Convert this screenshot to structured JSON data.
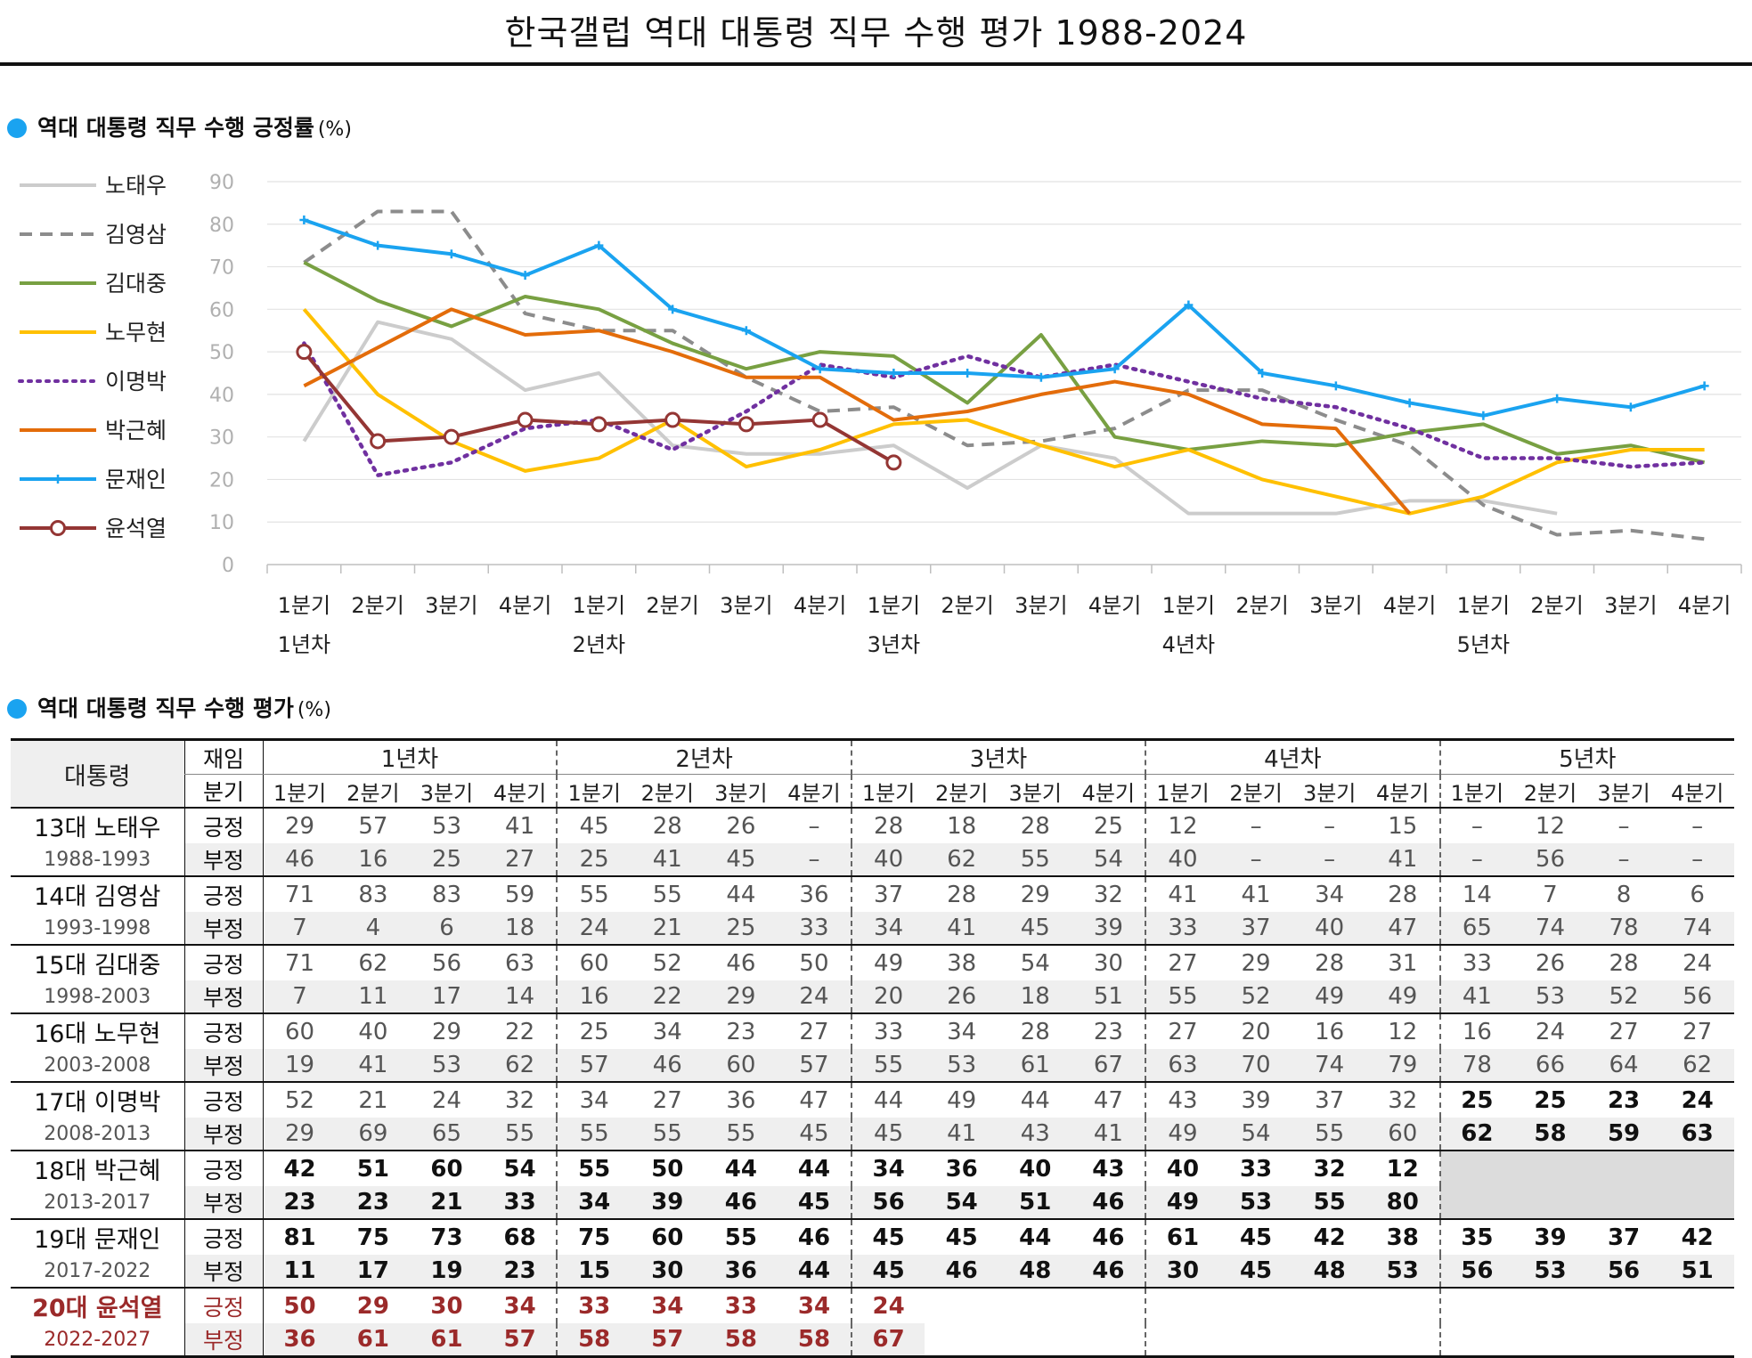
{
  "title": "한국갤럽 역대 대통령 직무 수행 평가 1988-2024",
  "chart_section": {
    "label": "역대 대통령 직무 수행 긍정률",
    "unit": "(%)"
  },
  "table_section": {
    "label": "역대 대통령 직무 수행 평가",
    "unit": "(%)"
  },
  "colors": {
    "accent_dot": "#1aa3f0",
    "current_president": "#9b2a2a"
  },
  "chart_data": {
    "type": "line",
    "title": "역대 대통령 직무 수행 긍정률 (%)",
    "ylim": [
      0,
      90
    ],
    "yticks": [
      0,
      10,
      20,
      30,
      40,
      50,
      60,
      70,
      80,
      90
    ],
    "quarter_labels": [
      "1분기",
      "2분기",
      "3분기",
      "4분기",
      "1분기",
      "2분기",
      "3분기",
      "4분기",
      "1분기",
      "2분기",
      "3분기",
      "4분기",
      "1분기",
      "2분기",
      "3분기",
      "4분기",
      "1분기",
      "2분기",
      "3분기",
      "4분기"
    ],
    "year_labels": [
      "1년차",
      "2년차",
      "3년차",
      "4년차",
      "5년차"
    ],
    "grid": true,
    "legend": "left",
    "series": [
      {
        "name": "노태우",
        "color": "#cccccc",
        "dash": "solid",
        "marker": "none",
        "values": [
          29,
          57,
          53,
          41,
          45,
          28,
          26,
          26,
          28,
          18,
          28,
          25,
          12,
          12,
          12,
          15,
          15,
          12,
          null,
          null
        ]
      },
      {
        "name": "김영삼",
        "color": "#8c8c8c",
        "dash": "dashed",
        "marker": "none",
        "values": [
          71,
          83,
          83,
          59,
          55,
          55,
          44,
          36,
          37,
          28,
          29,
          32,
          41,
          41,
          34,
          28,
          14,
          7,
          8,
          6
        ]
      },
      {
        "name": "김대중",
        "color": "#78a042",
        "dash": "solid",
        "marker": "none",
        "values": [
          71,
          62,
          56,
          63,
          60,
          52,
          46,
          50,
          49,
          38,
          54,
          30,
          27,
          29,
          28,
          31,
          33,
          26,
          28,
          24
        ]
      },
      {
        "name": "노무현",
        "color": "#ffc000",
        "dash": "solid",
        "marker": "none",
        "values": [
          60,
          40,
          29,
          22,
          25,
          34,
          23,
          27,
          33,
          34,
          28,
          23,
          27,
          20,
          16,
          12,
          16,
          24,
          27,
          27
        ]
      },
      {
        "name": "이명박",
        "color": "#7030a0",
        "dash": "dotted",
        "marker": "none",
        "values": [
          52,
          21,
          24,
          32,
          34,
          27,
          36,
          47,
          44,
          49,
          44,
          47,
          43,
          39,
          37,
          32,
          25,
          25,
          23,
          24
        ]
      },
      {
        "name": "박근혜",
        "color": "#e36c0a",
        "dash": "solid",
        "marker": "none",
        "values": [
          42,
          51,
          60,
          54,
          55,
          50,
          44,
          44,
          34,
          36,
          40,
          43,
          40,
          33,
          32,
          12,
          null,
          null,
          null,
          null
        ]
      },
      {
        "name": "문재인",
        "color": "#1aa3f0",
        "dash": "solid",
        "marker": "plus",
        "values": [
          81,
          75,
          73,
          68,
          75,
          60,
          55,
          46,
          45,
          45,
          44,
          46,
          61,
          45,
          42,
          38,
          35,
          39,
          37,
          42
        ]
      },
      {
        "name": "윤석열",
        "color": "#943634",
        "dash": "solid",
        "marker": "circle",
        "values": [
          50,
          29,
          30,
          34,
          33,
          34,
          33,
          34,
          24,
          null,
          null,
          null,
          null,
          null,
          null,
          null,
          null,
          null,
          null,
          null
        ]
      }
    ]
  },
  "table": {
    "col_president": "대통령",
    "col_term": "재임",
    "col_quarter": "분기",
    "years": [
      "1년차",
      "2년차",
      "3년차",
      "4년차",
      "5년차"
    ],
    "quarters": [
      "1분기",
      "2분기",
      "3분기",
      "4분기",
      "1분기",
      "2분기",
      "3분기",
      "4분기",
      "1분기",
      "2분기",
      "3분기",
      "4분기",
      "1분기",
      "2분기",
      "3분기",
      "4분기",
      "1분기",
      "2분기",
      "3분기",
      "4분기"
    ],
    "label_pos": "긍정",
    "label_neg": "부정",
    "presidents": [
      {
        "name": "13대 노태우",
        "years": "1988-1993",
        "pos": [
          "29",
          "57",
          "53",
          "41",
          "45",
          "28",
          "26",
          "–",
          "28",
          "18",
          "28",
          "25",
          "12",
          "–",
          "–",
          "15",
          "–",
          "12",
          "–",
          "–"
        ],
        "neg": [
          "46",
          "16",
          "25",
          "27",
          "25",
          "41",
          "45",
          "–",
          "40",
          "62",
          "55",
          "54",
          "40",
          "–",
          "–",
          "41",
          "–",
          "56",
          "–",
          "–"
        ]
      },
      {
        "name": "14대 김영삼",
        "years": "1993-1998",
        "pos": [
          "71",
          "83",
          "83",
          "59",
          "55",
          "55",
          "44",
          "36",
          "37",
          "28",
          "29",
          "32",
          "41",
          "41",
          "34",
          "28",
          "14",
          "7",
          "8",
          "6"
        ],
        "neg": [
          "7",
          "4",
          "6",
          "18",
          "24",
          "21",
          "25",
          "33",
          "34",
          "41",
          "45",
          "39",
          "33",
          "37",
          "40",
          "47",
          "65",
          "74",
          "78",
          "74"
        ]
      },
      {
        "name": "15대 김대중",
        "years": "1998-2003",
        "pos": [
          "71",
          "62",
          "56",
          "63",
          "60",
          "52",
          "46",
          "50",
          "49",
          "38",
          "54",
          "30",
          "27",
          "29",
          "28",
          "31",
          "33",
          "26",
          "28",
          "24"
        ],
        "neg": [
          "7",
          "11",
          "17",
          "14",
          "16",
          "22",
          "29",
          "24",
          "20",
          "26",
          "18",
          "51",
          "55",
          "52",
          "49",
          "49",
          "41",
          "53",
          "52",
          "56"
        ]
      },
      {
        "name": "16대 노무현",
        "years": "2003-2008",
        "pos": [
          "60",
          "40",
          "29",
          "22",
          "25",
          "34",
          "23",
          "27",
          "33",
          "34",
          "28",
          "23",
          "27",
          "20",
          "16",
          "12",
          "16",
          "24",
          "27",
          "27"
        ],
        "neg": [
          "19",
          "41",
          "53",
          "62",
          "57",
          "46",
          "60",
          "57",
          "55",
          "53",
          "61",
          "67",
          "63",
          "70",
          "74",
          "79",
          "78",
          "66",
          "64",
          "62"
        ]
      },
      {
        "name": "17대 이명박",
        "years": "2008-2013",
        "pos": [
          "52",
          "21",
          "24",
          "32",
          "34",
          "27",
          "36",
          "47",
          "44",
          "49",
          "44",
          "47",
          "43",
          "39",
          "37",
          "32",
          "25",
          "25",
          "23",
          "24"
        ],
        "neg": [
          "29",
          "69",
          "65",
          "55",
          "55",
          "55",
          "55",
          "45",
          "45",
          "41",
          "43",
          "41",
          "49",
          "54",
          "55",
          "60",
          "62",
          "58",
          "59",
          "63"
        ]
      },
      {
        "name": "18대 박근혜",
        "years": "2013-2017",
        "pos": [
          "42",
          "51",
          "60",
          "54",
          "55",
          "50",
          "44",
          "44",
          "34",
          "36",
          "40",
          "43",
          "40",
          "33",
          "32",
          "12",
          "",
          "",
          "",
          ""
        ],
        "neg": [
          "23",
          "23",
          "21",
          "33",
          "34",
          "39",
          "46",
          "45",
          "56",
          "54",
          "51",
          "46",
          "49",
          "53",
          "55",
          "80",
          "",
          "",
          "",
          ""
        ]
      },
      {
        "name": "19대 문재인",
        "years": "2017-2022",
        "pos": [
          "81",
          "75",
          "73",
          "68",
          "75",
          "60",
          "55",
          "46",
          "45",
          "45",
          "44",
          "46",
          "61",
          "45",
          "42",
          "38",
          "35",
          "39",
          "37",
          "42"
        ],
        "neg": [
          "11",
          "17",
          "19",
          "23",
          "15",
          "30",
          "36",
          "44",
          "45",
          "46",
          "48",
          "46",
          "30",
          "45",
          "48",
          "53",
          "56",
          "53",
          "56",
          "51"
        ]
      },
      {
        "name": "20대 윤석열",
        "years": "2022-2027",
        "pos": [
          "50",
          "29",
          "30",
          "34",
          "33",
          "34",
          "33",
          "34",
          "24",
          "",
          "",
          "",
          "",
          "",
          "",
          "",
          "",
          "",
          "",
          ""
        ],
        "neg": [
          "36",
          "61",
          "61",
          "57",
          "58",
          "57",
          "58",
          "58",
          "67",
          "",
          "",
          "",
          "",
          "",
          "",
          "",
          "",
          "",
          "",
          ""
        ]
      }
    ]
  }
}
